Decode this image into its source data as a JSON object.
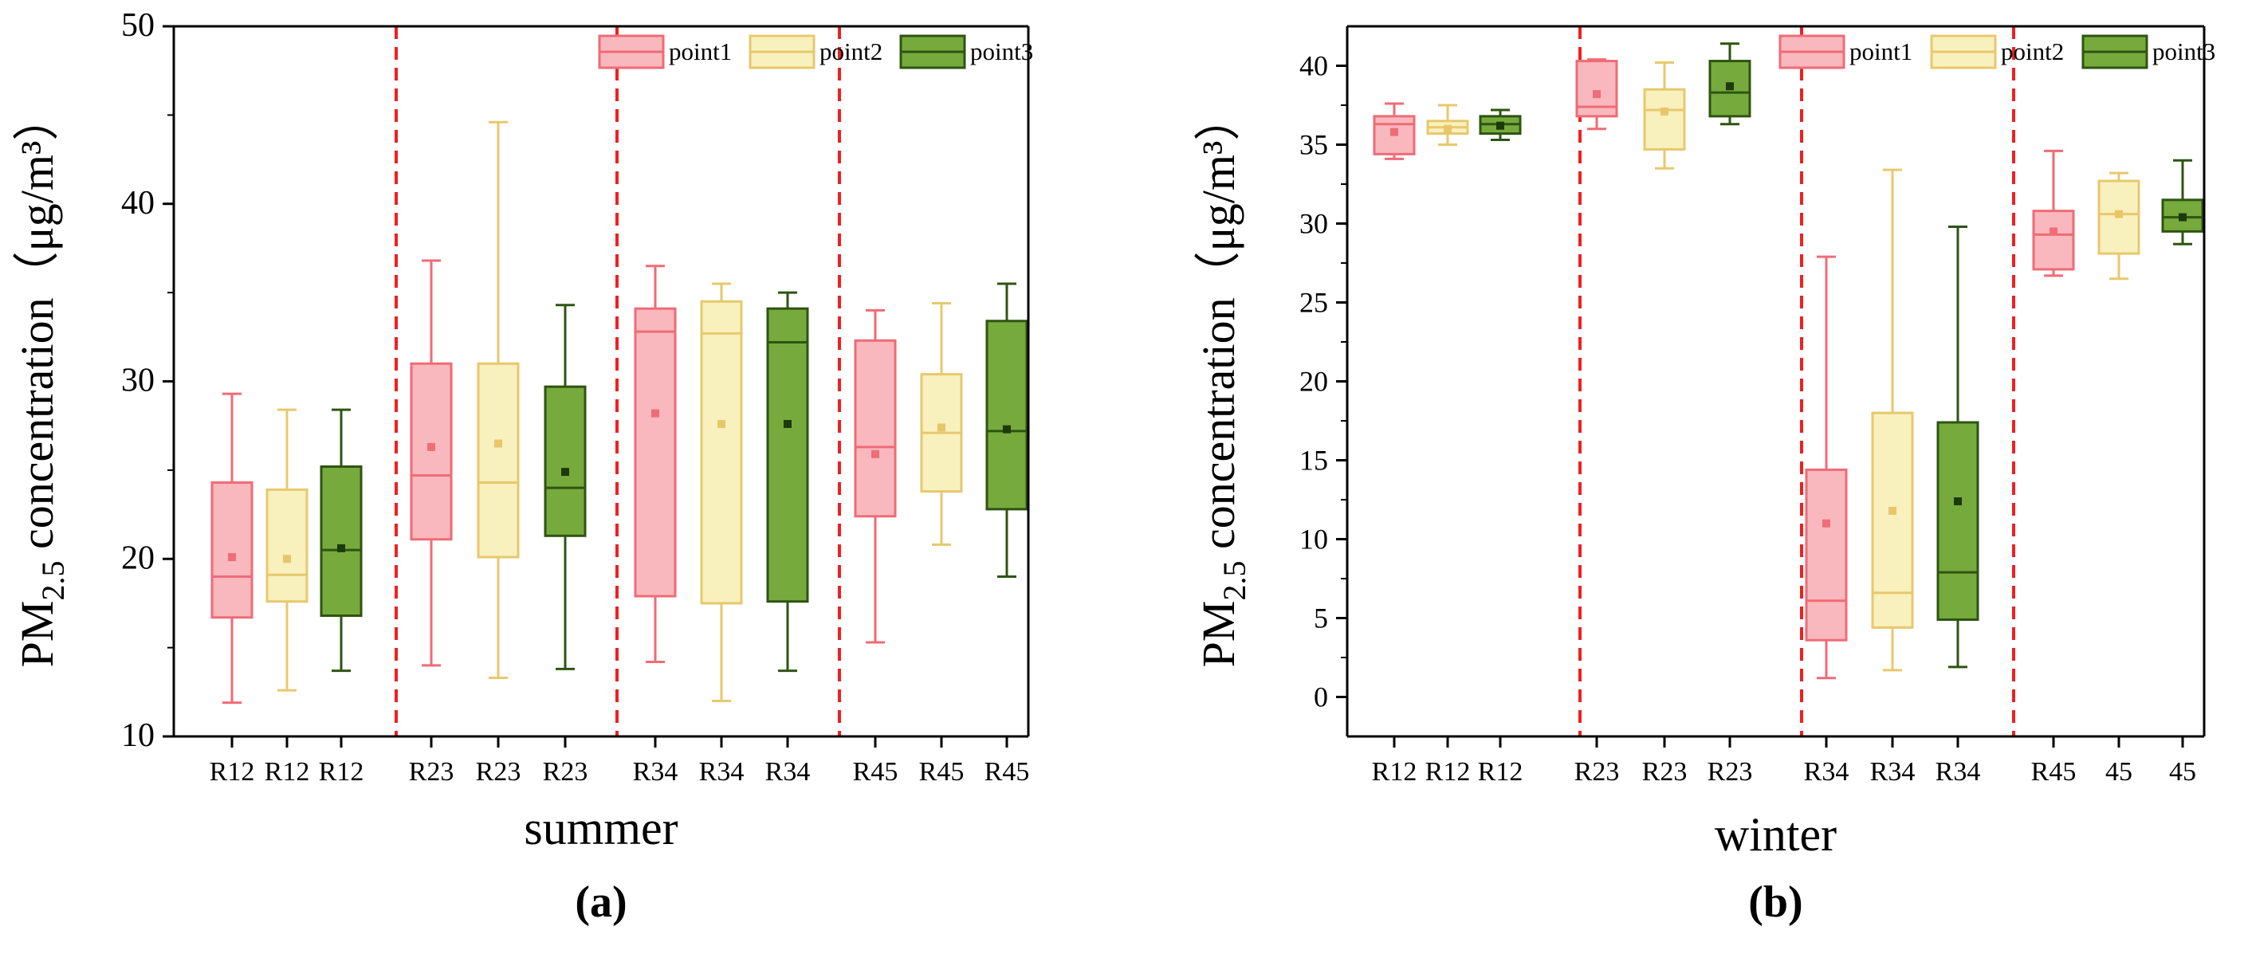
{
  "chart_data": [
    {
      "type": "box",
      "panel_label": "(a)",
      "xlabel": "summer",
      "ylabel": {
        "main": "PM",
        "sub": "2.5",
        "rest": " concentration（μg/m³）"
      },
      "ylim": [
        10,
        50
      ],
      "yticks": [
        "10",
        "20",
        "30",
        "40",
        "50"
      ],
      "grid": false,
      "legend_position": "top-right",
      "separators_after": [
        3,
        6,
        9
      ],
      "categories": [
        "R12",
        "R12",
        "R12",
        "R23",
        "R23",
        "R23",
        "R34",
        "R34",
        "R34",
        "R45",
        "R45",
        "R45"
      ],
      "series_names": [
        "point1",
        "point2",
        "point3"
      ],
      "boxes": [
        {
          "series": 0,
          "whisker_low": 11.9,
          "q1": 16.7,
          "median": 19.0,
          "q3": 24.3,
          "whisker_high": 29.3,
          "mean": 20.1
        },
        {
          "series": 1,
          "whisker_low": 12.6,
          "q1": 17.6,
          "median": 19.1,
          "q3": 23.9,
          "whisker_high": 28.4,
          "mean": 20.0
        },
        {
          "series": 2,
          "whisker_low": 13.7,
          "q1": 16.8,
          "median": 20.5,
          "q3": 25.2,
          "whisker_high": 28.4,
          "mean": 20.6
        },
        {
          "series": 0,
          "whisker_low": 14.0,
          "q1": 21.1,
          "median": 24.7,
          "q3": 31.0,
          "whisker_high": 36.8,
          "mean": 26.3
        },
        {
          "series": 1,
          "whisker_low": 13.3,
          "q1": 20.1,
          "median": 24.3,
          "q3": 31.0,
          "whisker_high": 44.6,
          "mean": 26.5
        },
        {
          "series": 2,
          "whisker_low": 13.8,
          "q1": 21.3,
          "median": 24.0,
          "q3": 29.7,
          "whisker_high": 34.3,
          "mean": 24.9
        },
        {
          "series": 0,
          "whisker_low": 14.2,
          "q1": 17.9,
          "median": 32.8,
          "q3": 34.1,
          "whisker_high": 36.5,
          "mean": 28.2
        },
        {
          "series": 1,
          "whisker_low": 12.0,
          "q1": 17.5,
          "median": 32.7,
          "q3": 34.5,
          "whisker_high": 35.5,
          "mean": 27.6
        },
        {
          "series": 2,
          "whisker_low": 13.7,
          "q1": 17.6,
          "median": 32.2,
          "q3": 34.1,
          "whisker_high": 35.0,
          "mean": 27.6
        },
        {
          "series": 0,
          "whisker_low": 15.3,
          "q1": 22.4,
          "median": 26.3,
          "q3": 32.3,
          "whisker_high": 34.0,
          "mean": 25.9
        },
        {
          "series": 1,
          "whisker_low": 20.8,
          "q1": 23.8,
          "median": 27.1,
          "q3": 30.4,
          "whisker_high": 34.4,
          "mean": 27.4
        },
        {
          "series": 2,
          "whisker_low": 19.0,
          "q1": 22.8,
          "median": 27.2,
          "q3": 33.4,
          "whisker_high": 35.5,
          "mean": 27.3
        }
      ]
    },
    {
      "type": "box",
      "panel_label": "(b)",
      "xlabel": "winter",
      "ylabel": {
        "main": "PM",
        "sub": "2.5",
        "rest": " concentration（μg/m³）"
      },
      "ylim": [
        -2.5,
        42.5
      ],
      "yticks": [
        "0",
        "5",
        "10",
        "15",
        "20",
        "25",
        "30",
        "35",
        "40"
      ],
      "grid": false,
      "legend_position": "top-right",
      "separators_after": [
        3,
        6,
        9
      ],
      "categories": [
        "R12",
        "R12",
        "R12",
        "R23",
        "R23",
        "R23",
        "R34",
        "R34",
        "R34",
        "R45",
        "45",
        "45"
      ],
      "series_names": [
        "point1",
        "point2",
        "point3"
      ],
      "boxes": [
        {
          "series": 0,
          "whisker_low": 34.1,
          "q1": 34.4,
          "median": 36.3,
          "q3": 36.8,
          "whisker_high": 37.6,
          "mean": 35.8
        },
        {
          "series": 1,
          "whisker_low": 35.0,
          "q1": 35.7,
          "median": 36.1,
          "q3": 36.5,
          "whisker_high": 37.5,
          "mean": 36.0
        },
        {
          "series": 2,
          "whisker_low": 35.3,
          "q1": 35.7,
          "median": 36.3,
          "q3": 36.8,
          "whisker_high": 37.2,
          "mean": 36.2
        },
        {
          "series": 0,
          "whisker_low": 36.0,
          "q1": 36.8,
          "median": 37.4,
          "q3": 40.3,
          "whisker_high": 40.4,
          "mean": 38.2
        },
        {
          "series": 1,
          "whisker_low": 33.5,
          "q1": 34.7,
          "median": 37.2,
          "q3": 38.5,
          "whisker_high": 40.2,
          "mean": 37.1
        },
        {
          "series": 2,
          "whisker_low": 36.3,
          "q1": 36.8,
          "median": 38.3,
          "q3": 40.3,
          "whisker_high": 41.4,
          "mean": 38.7
        },
        {
          "series": 0,
          "whisker_low": 1.2,
          "q1": 3.6,
          "median": 6.1,
          "q3": 14.4,
          "whisker_high": 27.9,
          "mean": 11.0
        },
        {
          "series": 1,
          "whisker_low": 1.7,
          "q1": 4.4,
          "median": 6.6,
          "q3": 18.0,
          "whisker_high": 33.4,
          "mean": 11.8
        },
        {
          "series": 2,
          "whisker_low": 1.9,
          "q1": 4.9,
          "median": 7.9,
          "q3": 17.4,
          "whisker_high": 29.8,
          "mean": 12.4
        },
        {
          "series": 0,
          "whisker_low": 26.7,
          "q1": 27.1,
          "median": 29.3,
          "q3": 30.8,
          "whisker_high": 34.6,
          "mean": 29.5
        },
        {
          "series": 1,
          "whisker_low": 26.5,
          "q1": 28.1,
          "median": 30.6,
          "q3": 32.7,
          "whisker_high": 33.2,
          "mean": 30.6
        },
        {
          "series": 2,
          "whisker_low": 28.7,
          "q1": 29.5,
          "median": 30.4,
          "q3": 31.5,
          "whisker_high": 34.0,
          "mean": 30.4
        }
      ]
    }
  ],
  "styles": {
    "series_colors": [
      {
        "fill": "#F9B8BE",
        "stroke": "#F06B76",
        "mean": "#EE6D78"
      },
      {
        "fill": "#F8F1BE",
        "stroke": "#E8C86C",
        "mean": "#E9C66A"
      },
      {
        "fill": "#77AA3C",
        "stroke": "#2E5412",
        "mean": "#1D3A0A"
      }
    ],
    "separator_color": "#F02020"
  }
}
